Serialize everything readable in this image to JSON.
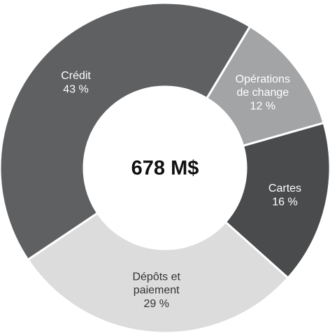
{
  "chart_data": {
    "type": "donut",
    "center_label": "678 M$",
    "categories": [
      "Opérations de change",
      "Cartes",
      "Dépôts et paiement",
      "Crédit"
    ],
    "values": [
      12,
      16,
      29,
      43
    ],
    "value_labels": [
      "12 %",
      "16 %",
      "29 %",
      "43 %"
    ],
    "colors": [
      "#a3a4a6",
      "#4a4b4d",
      "#dcdcdd",
      "#5f6062"
    ],
    "label_colors": [
      "#ffffff",
      "#ffffff",
      "#333333",
      "#ffffff"
    ]
  }
}
